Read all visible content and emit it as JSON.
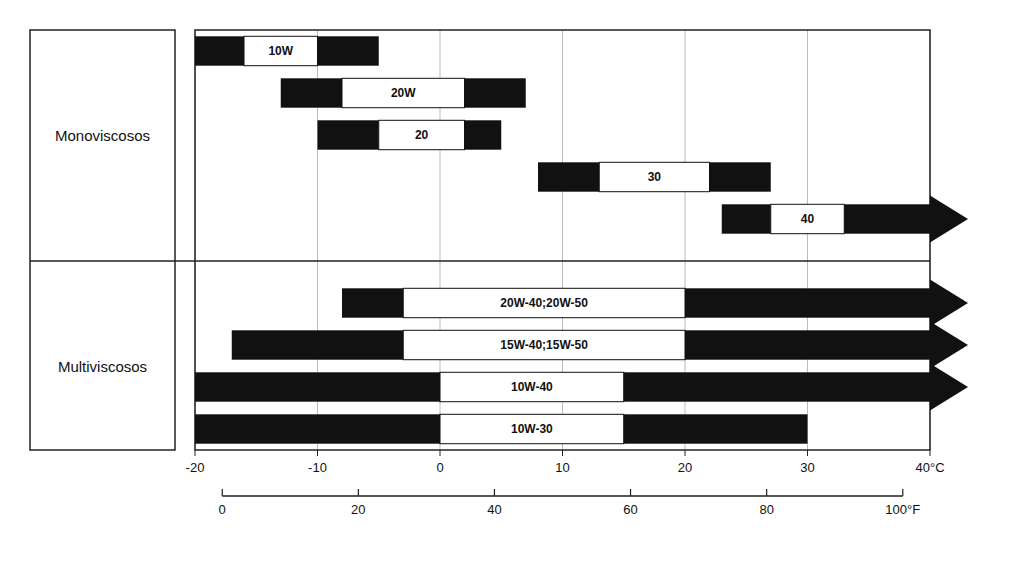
{
  "chart_data": {
    "type": "range_bar",
    "orientation": "horizontal",
    "grid": true,
    "xlim": [
      -20,
      40
    ],
    "xticks": [
      -20,
      -10,
      0,
      10,
      20,
      30,
      {
        "value": 40,
        "label": "40°C"
      }
    ],
    "x2lim": [
      -4,
      104
    ],
    "x2ticks": [
      0,
      20,
      40,
      60,
      80,
      {
        "value": 100,
        "label": "100°F"
      }
    ],
    "groups": [
      {
        "label": "Monoviscosos",
        "categories": [
          "10W",
          "20W",
          "20",
          "30",
          "40"
        ],
        "low": [
          -20,
          -13,
          -10,
          8,
          23
        ],
        "start": [
          -16,
          -8,
          -5,
          13,
          27
        ],
        "end": [
          -10,
          2,
          2,
          22,
          33
        ],
        "high": [
          -5,
          7,
          5,
          27,
          40
        ],
        "arrow": [
          false,
          false,
          false,
          false,
          true
        ]
      },
      {
        "label": "Multiviscosos",
        "categories": [
          "20W-40;20W-50",
          "15W-40;15W-50",
          "10W-40",
          "10W-30"
        ],
        "low": [
          -8,
          -17,
          -20,
          -20
        ],
        "start": [
          -3,
          -3,
          0,
          0
        ],
        "end": [
          20,
          20,
          15,
          15
        ],
        "high": [
          40,
          40,
          40,
          30
        ],
        "arrow": [
          true,
          true,
          true,
          false
        ]
      }
    ]
  }
}
